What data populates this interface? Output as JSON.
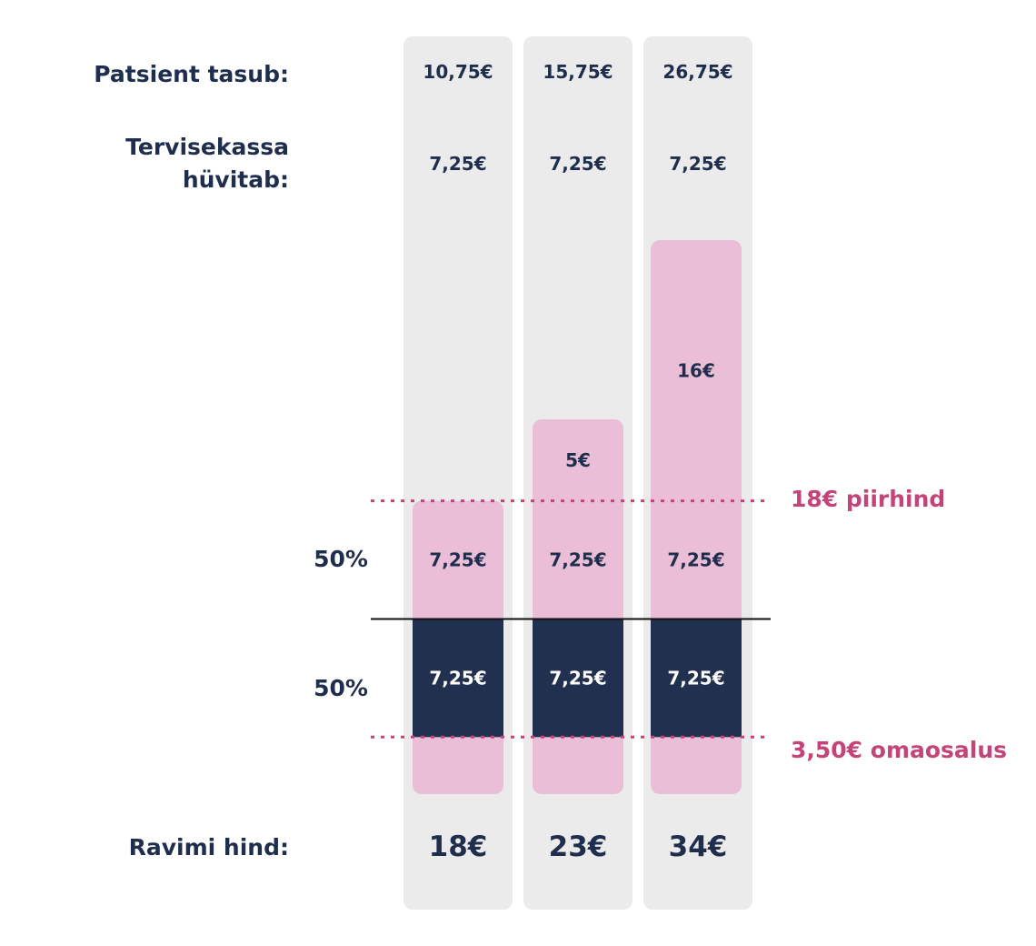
{
  "legend": {
    "patient_label": "Patsient tasub:",
    "fund_label_line1": "Tervisekassa",
    "fund_label_line2": "hüvitab:",
    "patient_color": "#ebbed7",
    "fund_color": "#21304f"
  },
  "share_labels": {
    "upper": "50%",
    "lower": "50%"
  },
  "price_row_label": "Ravimi hind:",
  "reference_lines": {
    "price_limit": {
      "label": "18€ piirhind",
      "value": 18
    },
    "copay": {
      "label": "3,50€ omaosalus",
      "value": 3.5
    }
  },
  "columns": [
    {
      "patient_total": "10,75€",
      "fund_total": "7,25€",
      "price": "18€"
    },
    {
      "patient_total": "15,75€",
      "fund_total": "7,25€",
      "price": "23€"
    },
    {
      "patient_total": "26,75€",
      "fund_total": "7,25€",
      "price": "34€"
    }
  ],
  "chart_data": {
    "type": "bar",
    "stacked": true,
    "categories": [
      "18€",
      "23€",
      "34€"
    ],
    "series": [
      {
        "values": [
          3.5,
          3.5,
          3.5
        ],
        "role": "omaosalus",
        "color": "#ebbed7"
      },
      {
        "values": [
          7.25,
          7.25,
          7.25
        ],
        "label": "7,25€",
        "color": "#21304f"
      },
      {
        "values": [
          7.25,
          7.25,
          7.25
        ],
        "label": "7,25€",
        "color": "#ebbed7"
      },
      {
        "values": [
          0,
          5,
          16
        ],
        "labels": [
          "",
          "5€",
          "16€"
        ],
        "color": "#ebbed7"
      }
    ],
    "ylim": [
      0,
      34
    ],
    "reference_lines": [
      18,
      3.5
    ],
    "divider_at": 10.75
  }
}
